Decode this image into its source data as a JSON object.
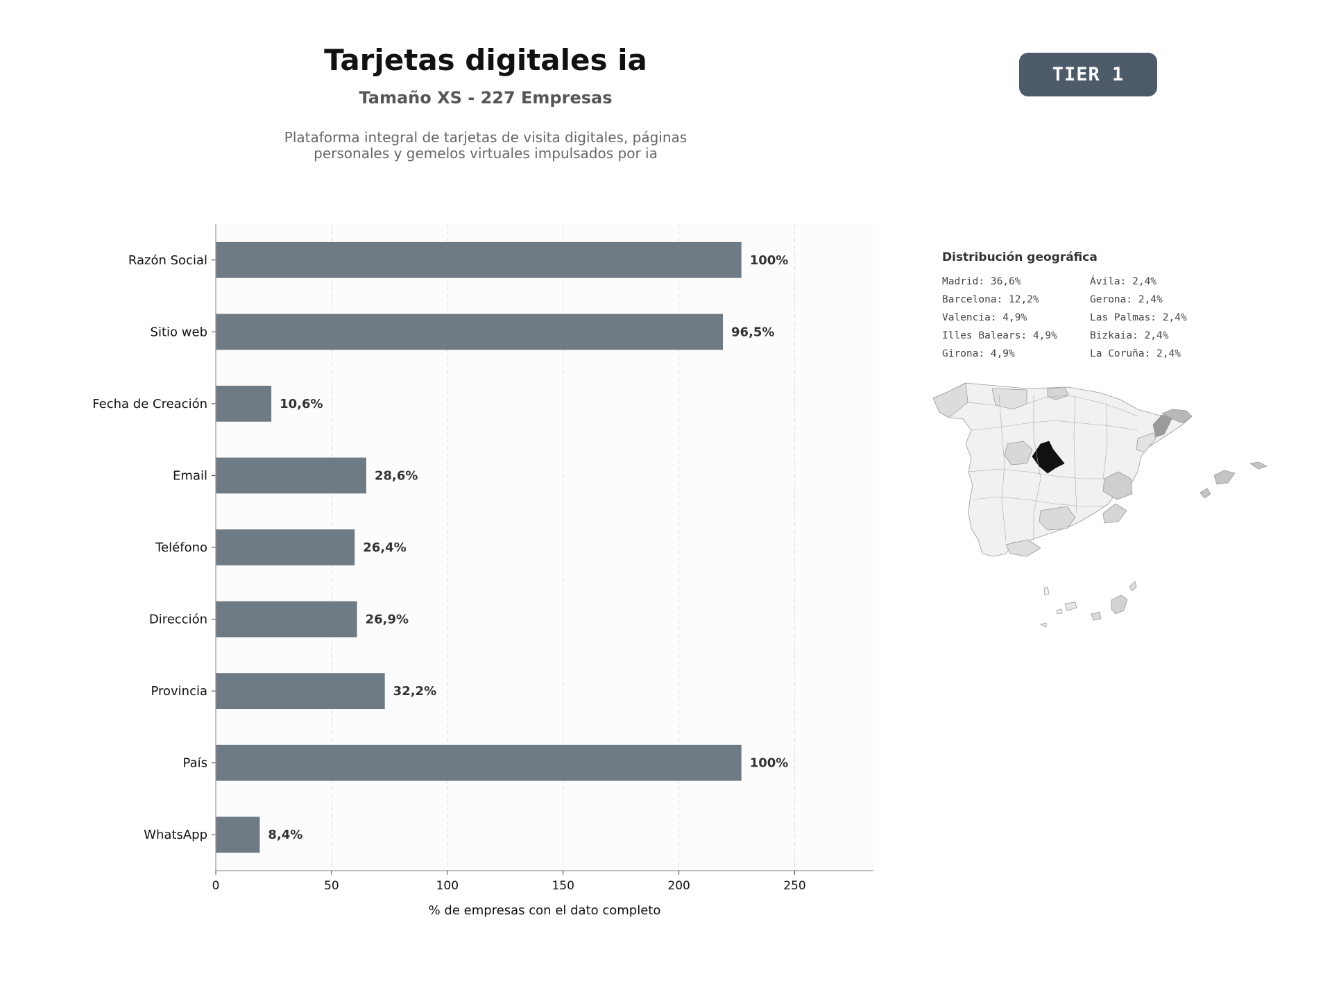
{
  "header": {
    "title": "Tarjetas digitales ia",
    "subtitle": "Tamaño XS - 227 Empresas",
    "description_line1": "Plataforma integral de tarjetas de visita digitales, páginas",
    "description_line2": "personales y gemelos virtuales impulsados por ia",
    "badge": "TIER 1"
  },
  "chart_data": {
    "type": "bar",
    "orientation": "horizontal",
    "categories": [
      "Razón Social",
      "Sitio web",
      "Fecha de Creación",
      "Email",
      "Teléfono",
      "Dirección",
      "Provincia",
      "País",
      "WhatsApp"
    ],
    "values": [
      227,
      219,
      24,
      65,
      60,
      61,
      73,
      227,
      19
    ],
    "data_labels": [
      "100%",
      "96,5%",
      "10,6%",
      "28,6%",
      "26,4%",
      "26,9%",
      "32,2%",
      "100%",
      "8,4%"
    ],
    "xlabel": "% de empresas con el dato completo",
    "ylabel": "",
    "xlim": [
      0,
      284
    ],
    "xticks": [
      0,
      50,
      100,
      150,
      200,
      250
    ],
    "grid": "vertical dashed",
    "bar_color": "#6e7a84"
  },
  "geo": {
    "title": "Distribución geográfica",
    "items": [
      "Madrid: 36,6%",
      "Ávila: 2,4%",
      "Barcelona: 12,2%",
      "Gerona: 2,4%",
      "Valencia: 4,9%",
      "Las Palmas: 2,4%",
      "Illes Balears: 4,9%",
      "Bizkaia: 2,4%",
      "Girona: 4,9%",
      "La Coruña: 2,4%"
    ]
  }
}
